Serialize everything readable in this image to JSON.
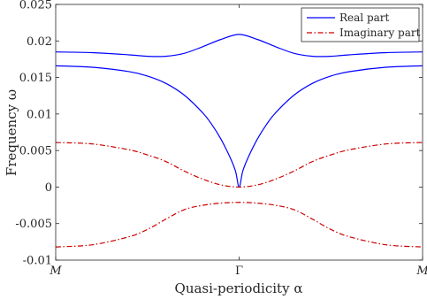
{
  "chart_data": {
    "type": "line",
    "xlabel": "Quasi-periodicity α",
    "ylabel": "Frequency ω",
    "x_ticks": [
      "M",
      "Γ",
      "M"
    ],
    "x_range": [
      -1,
      1
    ],
    "ylim": [
      -0.01,
      0.025
    ],
    "y_ticks": [
      -0.01,
      -0.005,
      0,
      0.005,
      0.01,
      0.015,
      0.02,
      0.025
    ],
    "y_tick_labels": [
      "-0.01",
      "-0.005",
      "0",
      "0.005",
      "0.01",
      "0.015",
      "0.02",
      "0.025"
    ],
    "grid": false,
    "legend_position": "top-right",
    "series": [
      {
        "name": "Real part",
        "color": "#0000ff",
        "dash": "solid",
        "curves": [
          {
            "x": [
              -1,
              -0.8,
              -0.6,
              -0.5,
              -0.4,
              -0.3,
              -0.2,
              -0.1,
              0,
              0.1,
              0.2,
              0.3,
              0.4,
              0.5,
              0.6,
              0.8,
              1
            ],
            "y": [
              0.0185,
              0.0184,
              0.0181,
              0.0179,
              0.0179,
              0.0183,
              0.0192,
              0.0202,
              0.0209,
              0.0202,
              0.0192,
              0.0183,
              0.0179,
              0.0179,
              0.0181,
              0.0184,
              0.0185
            ]
          },
          {
            "x": [
              -1,
              -0.8,
              -0.6,
              -0.5,
              -0.4,
              -0.3,
              -0.2,
              -0.15,
              -0.1,
              -0.05,
              -0.02,
              0,
              0.02,
              0.05,
              0.1,
              0.15,
              0.2,
              0.3,
              0.4,
              0.5,
              0.6,
              0.8,
              1
            ],
            "y": [
              0.0166,
              0.0164,
              0.0158,
              0.0152,
              0.0142,
              0.0126,
              0.0102,
              0.0086,
              0.0066,
              0.0041,
              0.0022,
              0.0,
              0.0022,
              0.0041,
              0.0066,
              0.0086,
              0.0102,
              0.0126,
              0.0142,
              0.0152,
              0.0158,
              0.0164,
              0.0166
            ]
          }
        ]
      },
      {
        "name": "Imaginary part",
        "color": "#cc0000",
        "dash": "dashdot",
        "curves": [
          {
            "x": [
              -1,
              -0.8,
              -0.6,
              -0.5,
              -0.4,
              -0.3,
              -0.2,
              -0.1,
              0,
              0.1,
              0.2,
              0.3,
              0.4,
              0.5,
              0.6,
              0.8,
              1
            ],
            "y": [
              0.0061,
              0.0059,
              0.0051,
              0.0044,
              0.0035,
              0.0022,
              0.0011,
              0.0003,
              0.0,
              0.0003,
              0.0011,
              0.0022,
              0.0035,
              0.0044,
              0.0051,
              0.0059,
              0.0061
            ]
          },
          {
            "x": [
              -1,
              -0.8,
              -0.6,
              -0.5,
              -0.4,
              -0.3,
              -0.2,
              -0.1,
              0,
              0.1,
              0.2,
              0.3,
              0.4,
              0.5,
              0.6,
              0.8,
              1
            ],
            "y": [
              -0.0082,
              -0.0079,
              -0.0068,
              -0.0058,
              -0.0044,
              -0.0031,
              -0.0025,
              -0.0022,
              -0.0021,
              -0.0022,
              -0.0025,
              -0.0031,
              -0.0044,
              -0.0058,
              -0.0068,
              -0.0079,
              -0.0082
            ]
          }
        ]
      }
    ]
  }
}
